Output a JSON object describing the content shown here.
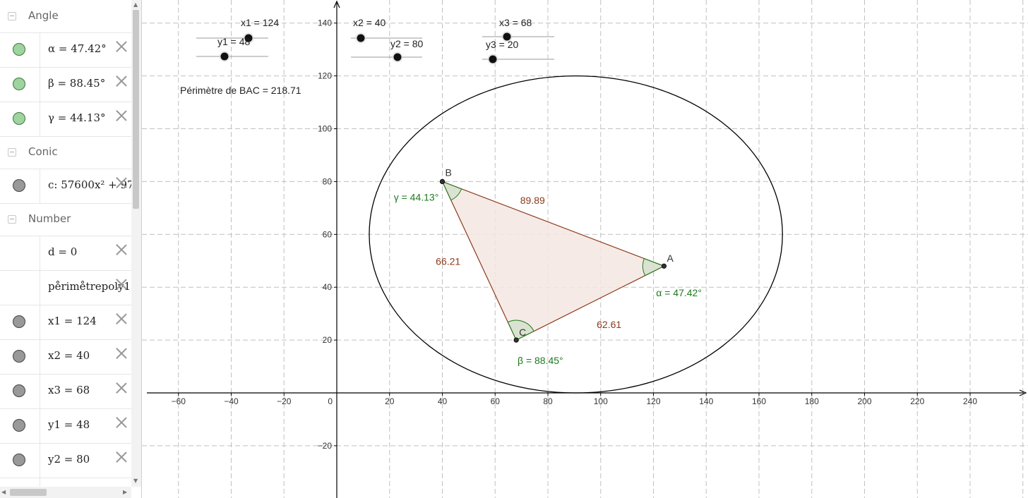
{
  "algebra": {
    "groups": {
      "angle": "Angle",
      "conic": "Conic",
      "number": "Number"
    },
    "rows": {
      "alpha": "α = 47.42°",
      "beta": "β = 88.45°",
      "gamma": "γ = 44.13°",
      "conic_c": "c: 57600x² + 97",
      "d": "d = 0",
      "perimetre": "pe̊rime̊trepoly1",
      "x1": "x1 = 124",
      "x2": "x2 = 40",
      "x3": "x3 = 68",
      "y1": "y1 = 48",
      "y2": "y2 = 80"
    }
  },
  "graphics": {
    "perimeter_text": "Périmètre de  BAC = 218.71",
    "points": {
      "A": [
        124,
        48
      ],
      "B": [
        40,
        80
      ],
      "C": [
        68,
        20
      ]
    },
    "point_labels": {
      "A": "A",
      "B": "B",
      "C": "C"
    },
    "side_labels": {
      "AB": "89.89",
      "BC": "66.21",
      "CA": "62.61"
    },
    "angle_labels": {
      "alpha": "α = 47.42°",
      "beta": "β = 88.45°",
      "gamma": "γ = 44.13°"
    },
    "sliders": {
      "x1": "x1 = 124",
      "y1": "y1 = 48",
      "x2": "x2 = 40",
      "y2": "y2 = 80",
      "x3": "x3 = 68",
      "y3": "y3 = 20"
    },
    "axes": {
      "x_ticks": [
        -60,
        -40,
        -20,
        20,
        40,
        60,
        80,
        100,
        120,
        140,
        160,
        180,
        200,
        220,
        240
      ],
      "y_ticks": [
        -20,
        20,
        40,
        60,
        80,
        100,
        120,
        140
      ],
      "origin_label": "0"
    },
    "colors": {
      "triangle_fill": "#f5e6e2",
      "triangle_stroke": "#8b3a1a",
      "side_label": "#8b3a1a",
      "angle": "#1e7a1e",
      "grid": "#c0c0c0",
      "point": "#333333"
    }
  }
}
